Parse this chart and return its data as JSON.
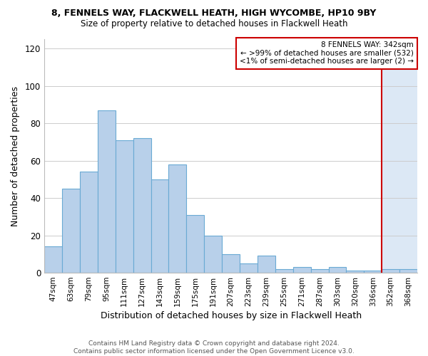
{
  "title1": "8, FENNELS WAY, FLACKWELL HEATH, HIGH WYCOMBE, HP10 9BY",
  "title2": "Size of property relative to detached houses in Flackwell Heath",
  "xlabel": "Distribution of detached houses by size in Flackwell Heath",
  "ylabel": "Number of detached properties",
  "categories": [
    "47sqm",
    "63sqm",
    "79sqm",
    "95sqm",
    "111sqm",
    "127sqm",
    "143sqm",
    "159sqm",
    "175sqm",
    "191sqm",
    "207sqm",
    "223sqm",
    "239sqm",
    "255sqm",
    "271sqm",
    "287sqm",
    "303sqm",
    "320sqm",
    "336sqm",
    "352sqm",
    "368sqm"
  ],
  "values": [
    14,
    45,
    54,
    87,
    71,
    72,
    50,
    58,
    31,
    20,
    10,
    5,
    9,
    2,
    3,
    2,
    3,
    1,
    1,
    2,
    2
  ],
  "bar_color": "#b8d0ea",
  "bar_edge_color": "#6aaad4",
  "vline_index": 18,
  "vline_color": "#cc0000",
  "highlight_color": "#dce8f5",
  "ylim": [
    0,
    125
  ],
  "yticks": [
    0,
    20,
    40,
    60,
    80,
    100,
    120
  ],
  "annotation_line1": "8 FENNELS WAY: 342sqm",
  "annotation_line2": "← >99% of detached houses are smaller (532)",
  "annotation_line3": "<1% of semi-detached houses are larger (2) →",
  "annotation_box_color": "#cc0000",
  "footer": "Contains HM Land Registry data © Crown copyright and database right 2024.\nContains public sector information licensed under the Open Government Licence v3.0.",
  "bg_color": "#ffffff",
  "grid_color": "#cccccc"
}
